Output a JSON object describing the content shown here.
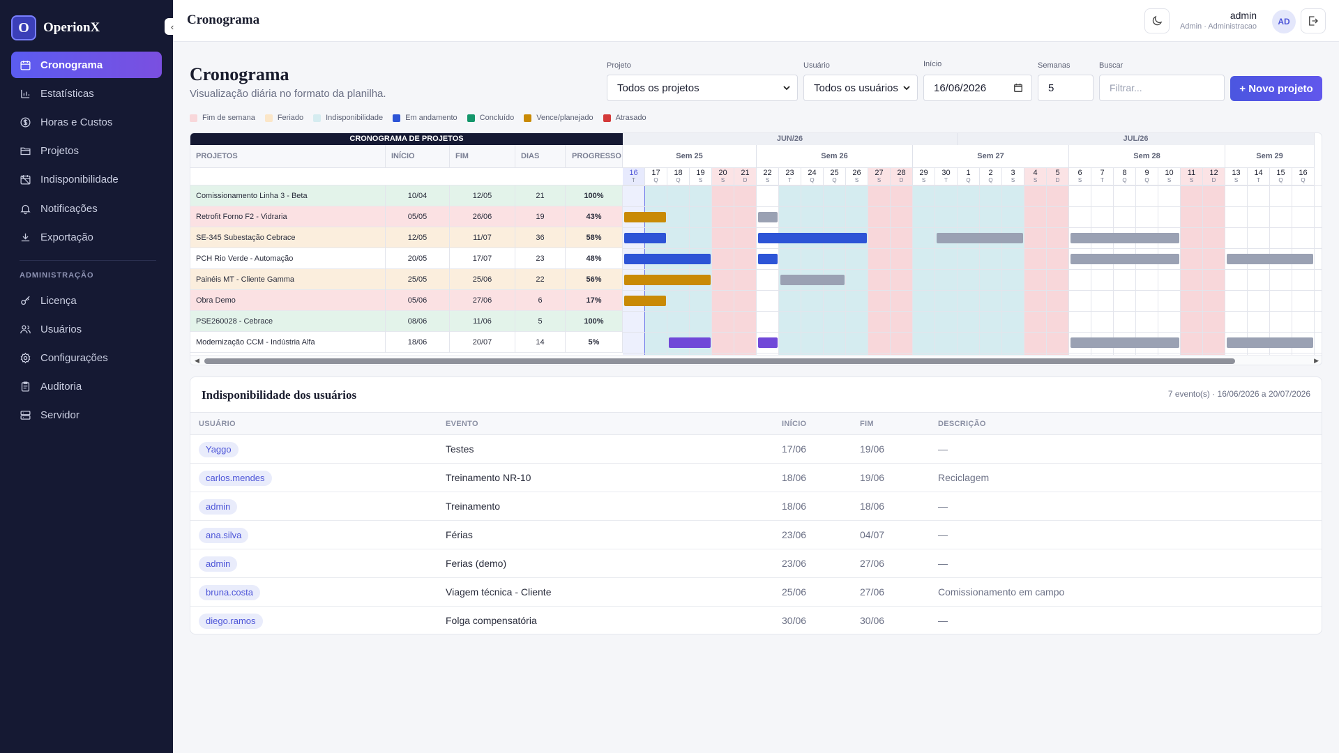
{
  "brand": {
    "logo_letter": "O",
    "name": "OperionX"
  },
  "sidebar": {
    "items": [
      {
        "label": "Cronograma",
        "icon": "calendar-icon",
        "active": true
      },
      {
        "label": "Estatísticas",
        "icon": "bar-chart-icon"
      },
      {
        "label": "Horas e Custos",
        "icon": "dollar-icon"
      },
      {
        "label": "Projetos",
        "icon": "folder-icon"
      },
      {
        "label": "Indisponibilidade",
        "icon": "calendar-off-icon"
      },
      {
        "label": "Notificações",
        "icon": "bell-icon"
      },
      {
        "label": "Exportação",
        "icon": "download-icon"
      }
    ],
    "admin_section": "ADMINISTRAÇÃO",
    "admin_items": [
      {
        "label": "Licença",
        "icon": "key-icon"
      },
      {
        "label": "Usuários",
        "icon": "users-icon"
      },
      {
        "label": "Configurações",
        "icon": "gear-icon"
      },
      {
        "label": "Auditoria",
        "icon": "clipboard-icon"
      },
      {
        "label": "Servidor",
        "icon": "server-icon"
      }
    ]
  },
  "header": {
    "title": "Cronograma",
    "user_name": "admin",
    "user_role": "Admin · Administracao",
    "avatar": "AD"
  },
  "page": {
    "title": "Cronograma",
    "subtitle": "Visualização diária no formato da planilha."
  },
  "filters": {
    "projeto_label": "Projeto",
    "projeto_value": "Todos os projetos",
    "usuario_label": "Usuário",
    "usuario_value": "Todos os usuários",
    "inicio_label": "Início",
    "inicio_value": "16/06/2026",
    "semanas_label": "Semanas",
    "semanas_value": "5",
    "buscar_label": "Buscar",
    "buscar_placeholder": "Filtrar...",
    "new_project": "+ Novo projeto"
  },
  "legend": [
    {
      "label": "Fim de semana",
      "color": "#f8d7da"
    },
    {
      "label": "Feriado",
      "color": "#fbe6c8"
    },
    {
      "label": "Indisponibilidade",
      "color": "#d5ecf0"
    },
    {
      "label": "Em andamento",
      "color": "#2d54d6"
    },
    {
      "label": "Concluído",
      "color": "#14966b"
    },
    {
      "label": "Vence/planejado",
      "color": "#c98a05"
    },
    {
      "label": "Atrasado",
      "color": "#d43a3a"
    }
  ],
  "gantt": {
    "banner": "CRONOGRAMA DE PROJETOS",
    "columns": [
      "PROJETOS",
      "INÍCIO",
      "FIM",
      "DIAS",
      "PROGRESSO"
    ],
    "projects": [
      {
        "name": "Comissionamento Linha 3 - Beta",
        "start": "10/04",
        "end": "12/05",
        "days": "21",
        "progress": "100%",
        "row_color": "#e3f3ea"
      },
      {
        "name": "Retrofit Forno F2 - Vidraria",
        "start": "05/05",
        "end": "26/06",
        "days": "19",
        "progress": "43%",
        "row_color": "#fbe1e3"
      },
      {
        "name": "SE-345 Subestação Cebrace",
        "start": "12/05",
        "end": "11/07",
        "days": "36",
        "progress": "58%",
        "row_color": "#fbeedd"
      },
      {
        "name": "PCH Rio Verde - Automação",
        "start": "20/05",
        "end": "17/07",
        "days": "23",
        "progress": "48%",
        "row_color": "#ffffff"
      },
      {
        "name": "Painéis MT - Cliente Gamma",
        "start": "25/05",
        "end": "25/06",
        "days": "22",
        "progress": "56%",
        "row_color": "#fbeedd"
      },
      {
        "name": "Obra Demo",
        "start": "05/06",
        "end": "27/06",
        "days": "6",
        "progress": "17%",
        "row_color": "#fbe1e3"
      },
      {
        "name": "PSE260028 - Cebrace",
        "start": "08/06",
        "end": "11/06",
        "days": "5",
        "progress": "100%",
        "row_color": "#e3f3ea"
      },
      {
        "name": "Modernização CCM - Indústria Alfa",
        "start": "18/06",
        "end": "20/07",
        "days": "14",
        "progress": "5%",
        "row_color": "#ffffff"
      }
    ],
    "months": [
      {
        "label": "JUN/26",
        "start_day": 0,
        "span": 15
      },
      {
        "label": "JUL/26",
        "start_day": 15,
        "span": 16
      }
    ],
    "weeks": [
      {
        "label": "Sem 25",
        "start_day": 0,
        "span": 6
      },
      {
        "label": "Sem 26",
        "start_day": 6,
        "span": 7
      },
      {
        "label": "Sem 27",
        "start_day": 13,
        "span": 7
      },
      {
        "label": "Sem 28",
        "start_day": 20,
        "span": 7
      },
      {
        "label": "Sem 29",
        "start_day": 27,
        "span": 4
      }
    ],
    "days": [
      {
        "d": "16",
        "w": "T"
      },
      {
        "d": "17",
        "w": "Q"
      },
      {
        "d": "18",
        "w": "Q"
      },
      {
        "d": "19",
        "w": "S"
      },
      {
        "d": "20",
        "w": "S"
      },
      {
        "d": "21",
        "w": "D"
      },
      {
        "d": "22",
        "w": "S"
      },
      {
        "d": "23",
        "w": "T"
      },
      {
        "d": "24",
        "w": "Q"
      },
      {
        "d": "25",
        "w": "Q"
      },
      {
        "d": "26",
        "w": "S"
      },
      {
        "d": "27",
        "w": "S"
      },
      {
        "d": "28",
        "w": "D"
      },
      {
        "d": "29",
        "w": "S"
      },
      {
        "d": "30",
        "w": "T"
      },
      {
        "d": "1",
        "w": "Q"
      },
      {
        "d": "2",
        "w": "Q"
      },
      {
        "d": "3",
        "w": "S"
      },
      {
        "d": "4",
        "w": "S"
      },
      {
        "d": "5",
        "w": "D"
      },
      {
        "d": "6",
        "w": "S"
      },
      {
        "d": "7",
        "w": "T"
      },
      {
        "d": "8",
        "w": "Q"
      },
      {
        "d": "9",
        "w": "Q"
      },
      {
        "d": "10",
        "w": "S"
      },
      {
        "d": "11",
        "w": "S"
      },
      {
        "d": "12",
        "w": "D"
      },
      {
        "d": "13",
        "w": "S"
      },
      {
        "d": "14",
        "w": "T"
      },
      {
        "d": "15",
        "w": "Q"
      },
      {
        "d": "16",
        "w": "Q"
      }
    ],
    "today_index": 0,
    "weekend_days": [
      4,
      5,
      11,
      12,
      18,
      19,
      25,
      26
    ],
    "unavailable_ranges": [
      [
        1,
        3
      ],
      [
        7,
        17
      ]
    ],
    "bars": [
      {
        "row": 1,
        "from": 0,
        "to": 1,
        "color": "#c98a05"
      },
      {
        "row": 1,
        "from": 6,
        "to": 6,
        "color": "#9aa1b3"
      },
      {
        "row": 2,
        "from": 0,
        "to": 1,
        "color": "#2d54d6"
      },
      {
        "row": 2,
        "from": 6,
        "to": 10,
        "color": "#2d54d6"
      },
      {
        "row": 2,
        "from": 14,
        "to": 17,
        "color": "#9aa1b3"
      },
      {
        "row": 2,
        "from": 20,
        "to": 24,
        "color": "#9aa1b3"
      },
      {
        "row": 3,
        "from": 0,
        "to": 3,
        "color": "#2d54d6"
      },
      {
        "row": 3,
        "from": 6,
        "to": 6,
        "color": "#2d54d6"
      },
      {
        "row": 3,
        "from": 20,
        "to": 24,
        "color": "#9aa1b3"
      },
      {
        "row": 3,
        "from": 27,
        "to": 30,
        "color": "#9aa1b3"
      },
      {
        "row": 4,
        "from": 0,
        "to": 3,
        "color": "#c98a05"
      },
      {
        "row": 4,
        "from": 7,
        "to": 9,
        "color": "#9aa1b3"
      },
      {
        "row": 5,
        "from": 0,
        "to": 1,
        "color": "#c98a05"
      },
      {
        "row": 7,
        "from": 2,
        "to": 3,
        "color": "#7048d8"
      },
      {
        "row": 7,
        "from": 6,
        "to": 6,
        "color": "#7048d8"
      },
      {
        "row": 7,
        "from": 20,
        "to": 24,
        "color": "#9aa1b3"
      },
      {
        "row": 7,
        "from": 27,
        "to": 30,
        "color": "#9aa1b3"
      }
    ]
  },
  "unavailability": {
    "title": "Indisponibilidade dos usuários",
    "summary": "7 evento(s) · 16/06/2026 a 20/07/2026",
    "columns": [
      "USUÁRIO",
      "EVENTO",
      "INÍCIO",
      "FIM",
      "DESCRIÇÃO"
    ],
    "rows": [
      {
        "user": "Yaggo",
        "event": "Testes",
        "start": "17/06",
        "end": "19/06",
        "desc": "—"
      },
      {
        "user": "carlos.mendes",
        "event": "Treinamento NR-10",
        "start": "18/06",
        "end": "19/06",
        "desc": "Reciclagem"
      },
      {
        "user": "admin",
        "event": "Treinamento",
        "start": "18/06",
        "end": "18/06",
        "desc": "—"
      },
      {
        "user": "ana.silva",
        "event": "Férias",
        "start": "23/06",
        "end": "04/07",
        "desc": "—"
      },
      {
        "user": "admin",
        "event": "Ferias (demo)",
        "start": "23/06",
        "end": "27/06",
        "desc": "—"
      },
      {
        "user": "bruna.costa",
        "event": "Viagem técnica - Cliente",
        "start": "25/06",
        "end": "27/06",
        "desc": "Comissionamento em campo"
      },
      {
        "user": "diego.ramos",
        "event": "Folga compensatória",
        "start": "30/06",
        "end": "30/06",
        "desc": "—"
      }
    ]
  }
}
